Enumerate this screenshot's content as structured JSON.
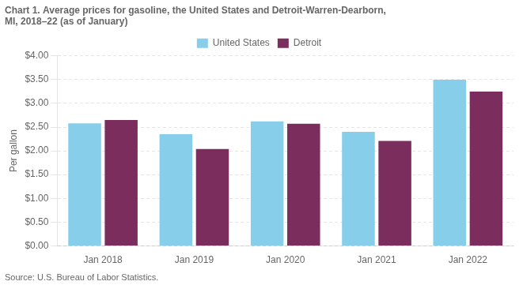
{
  "chart_data": {
    "type": "bar",
    "title": [
      "Chart 1. Average prices for gasoline, the United States and Detroit-Warren-Dearborn,",
      "MI, 2018–22 (as of January)"
    ],
    "y_label": "Per gallon",
    "source": "Source: U.S. Bureau of Labor Statistics.",
    "categories": [
      "Jan 2018",
      "Jan 2019",
      "Jan 2020",
      "Jan 2021",
      "Jan 2022"
    ],
    "series": [
      {
        "name": "United States",
        "color": "#87CEEB",
        "values": [
          2.58,
          2.35,
          2.62,
          2.4,
          3.5
        ]
      },
      {
        "name": "Detroit",
        "color": "#7B2D5E",
        "values": [
          2.65,
          2.04,
          2.57,
          2.21,
          3.25
        ]
      }
    ],
    "ylim": [
      0,
      4.0
    ],
    "yticks": [
      {
        "value": 0.0,
        "label": "$0.00"
      },
      {
        "value": 0.5,
        "label": "$0.50"
      },
      {
        "value": 1.0,
        "label": "$1.00"
      },
      {
        "value": 1.5,
        "label": "$1.50"
      },
      {
        "value": 2.0,
        "label": "$2.00"
      },
      {
        "value": 2.5,
        "label": "$2.50"
      },
      {
        "value": 3.0,
        "label": "$3.00"
      },
      {
        "value": 3.5,
        "label": "$3.50"
      },
      {
        "value": 4.0,
        "label": "$4.00"
      }
    ],
    "grid": true,
    "legend": "top"
  }
}
